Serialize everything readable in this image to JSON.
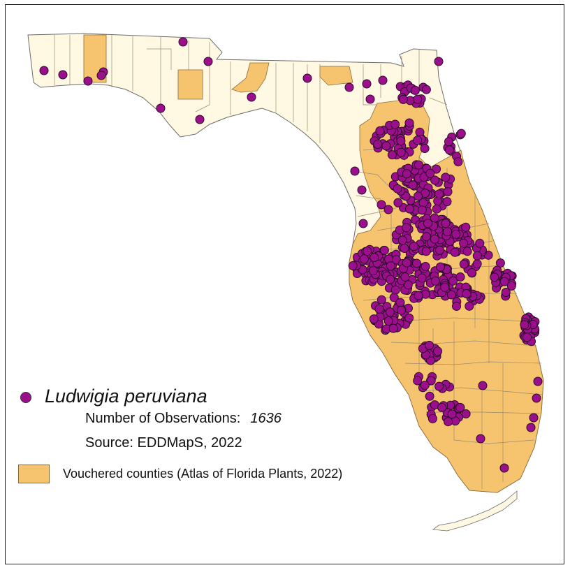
{
  "legend": {
    "species_name": "Ludwigia peruviana",
    "observations_label": "Number of Observations:",
    "observations_value": "1636",
    "source": "Source: EDDMapS, 2022",
    "vouchered_label": "Vouchered counties (Atlas of Florida Plants, 2022)"
  },
  "colors": {
    "state_fill": "#fff8e3",
    "vouchered_fill": "#f6c46e",
    "county_border": "#9a8a6e",
    "observation_fill": "#9c0f8c",
    "observation_stroke": "#2a0a28"
  }
}
